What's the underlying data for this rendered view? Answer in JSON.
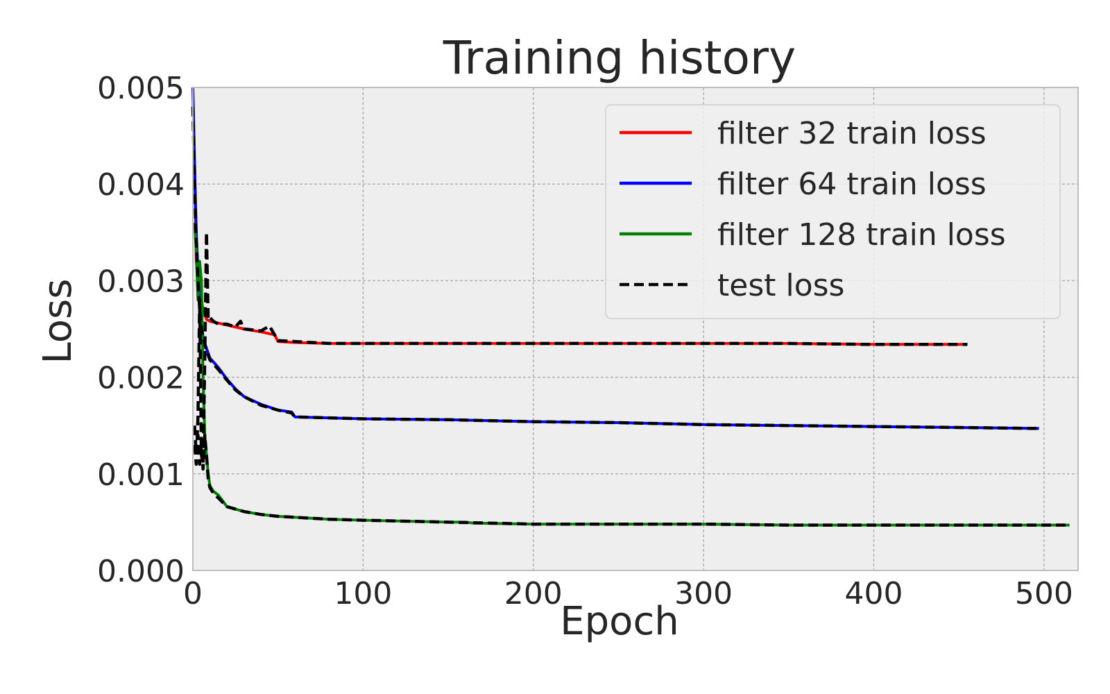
{
  "chart_data": {
    "type": "line",
    "title": "Training history",
    "xlabel": "Epoch",
    "ylabel": "Loss",
    "xlim": [
      0,
      520
    ],
    "ylim": [
      0,
      0.005
    ],
    "xticks": [
      0,
      100,
      200,
      300,
      400,
      500
    ],
    "yticks": [
      0.0,
      0.001,
      0.002,
      0.003,
      0.004,
      0.005
    ],
    "xtick_labels": [
      "0",
      "100",
      "200",
      "300",
      "400",
      "500"
    ],
    "ytick_labels": [
      "0.000",
      "0.001",
      "0.002",
      "0.003",
      "0.004",
      "0.005"
    ],
    "grid": true,
    "legend_position": "top-right",
    "series": [
      {
        "name": "filter 32 train loss",
        "color": "#ff0000",
        "style": "solid",
        "x": [
          1,
          2,
          3,
          4,
          5,
          6,
          7,
          8,
          10,
          15,
          20,
          30,
          40,
          48,
          50,
          60,
          80,
          100,
          150,
          200,
          250,
          300,
          350,
          400,
          455
        ],
        "y": [
          0.0042,
          0.0032,
          0.003,
          0.0029,
          0.0028,
          0.0027,
          0.00265,
          0.0026,
          0.00258,
          0.00256,
          0.00254,
          0.0025,
          0.00247,
          0.00244,
          0.00237,
          0.00236,
          0.00235,
          0.00235,
          0.00235,
          0.00235,
          0.00235,
          0.00235,
          0.00235,
          0.00234,
          0.00234
        ]
      },
      {
        "name": "filter 64 train loss",
        "color": "#0000ff",
        "style": "solid",
        "x": [
          0,
          1,
          2,
          3,
          4,
          5,
          6,
          8,
          10,
          15,
          20,
          25,
          30,
          40,
          50,
          58,
          60,
          80,
          100,
          150,
          200,
          250,
          300,
          350,
          400,
          450,
          497
        ],
        "y": [
          0.005,
          0.0042,
          0.0035,
          0.0031,
          0.0028,
          0.0026,
          0.0024,
          0.0023,
          0.0022,
          0.0021,
          0.00198,
          0.00188,
          0.0018,
          0.00172,
          0.00166,
          0.00164,
          0.00159,
          0.00158,
          0.00157,
          0.00156,
          0.00154,
          0.00153,
          0.00151,
          0.0015,
          0.00149,
          0.00148,
          0.00147
        ]
      },
      {
        "name": "filter 128 train loss",
        "color": "#008000",
        "style": "solid",
        "x": [
          1,
          2,
          3,
          4,
          5,
          6,
          7,
          8,
          9,
          10,
          12,
          15,
          20,
          30,
          40,
          50,
          60,
          80,
          100,
          150,
          160,
          165,
          200,
          250,
          300,
          350,
          400,
          450,
          515
        ],
        "y": [
          0.0036,
          0.0033,
          0.0028,
          0.0032,
          0.003,
          0.002,
          0.0014,
          0.0012,
          0.001,
          0.00088,
          0.00082,
          0.00078,
          0.00066,
          0.00061,
          0.00058,
          0.00056,
          0.00055,
          0.00053,
          0.00052,
          0.0005,
          0.0005,
          0.00049,
          0.00048,
          0.00048,
          0.00048,
          0.00047,
          0.00047,
          0.00047,
          0.00047
        ]
      },
      {
        "name": "test loss",
        "color": "#000000",
        "style": "dashed",
        "x": [
          1,
          2,
          3,
          4,
          5,
          6,
          7,
          8,
          9,
          10,
          12,
          15,
          20,
          25,
          28,
          30,
          35,
          40,
          45,
          50,
          60,
          70,
          80,
          100,
          150,
          200,
          250,
          300,
          350,
          400,
          455
        ],
        "y": [
          0.0013,
          0.0011,
          0.0016,
          0.0028,
          0.0012,
          0.0011,
          0.0022,
          0.0035,
          0.0026,
          0.00262,
          0.00258,
          0.00255,
          0.00255,
          0.00252,
          0.00258,
          0.0025,
          0.00249,
          0.00248,
          0.00253,
          0.00238,
          0.00237,
          0.00236,
          0.00235,
          0.00235,
          0.00235,
          0.00235,
          0.00235,
          0.00235,
          0.00235,
          0.00234,
          0.00234
        ]
      },
      {
        "name": "",
        "color": "#000000",
        "style": "dashed",
        "x": [
          0,
          1,
          2,
          3,
          4,
          5,
          6,
          8,
          10,
          15,
          20,
          25,
          30,
          40,
          50,
          58,
          60,
          80,
          100,
          150,
          200,
          250,
          300,
          350,
          400,
          450,
          497
        ],
        "y": [
          0.0048,
          0.004,
          0.0034,
          0.003,
          0.0027,
          0.0025,
          0.0024,
          0.00228,
          0.00218,
          0.00208,
          0.00197,
          0.00187,
          0.0018,
          0.00171,
          0.00166,
          0.00163,
          0.00159,
          0.00158,
          0.00157,
          0.00156,
          0.00154,
          0.00153,
          0.00151,
          0.0015,
          0.00149,
          0.00148,
          0.00147
        ]
      },
      {
        "name": "",
        "color": "#000000",
        "style": "dashed",
        "x": [
          1,
          2,
          3,
          4,
          5,
          6,
          7,
          8,
          9,
          10,
          12,
          15,
          20,
          30,
          40,
          50,
          60,
          80,
          100,
          150,
          200,
          250,
          300,
          350,
          400,
          450,
          515
        ],
        "y": [
          0.0015,
          0.0012,
          0.0014,
          0.0011,
          0.0013,
          0.00105,
          0.0014,
          0.0012,
          0.00095,
          0.00086,
          0.0008,
          0.00075,
          0.00066,
          0.00061,
          0.00058,
          0.00056,
          0.00055,
          0.00053,
          0.00052,
          0.0005,
          0.00048,
          0.00048,
          0.00048,
          0.00047,
          0.00047,
          0.00047,
          0.00047
        ]
      }
    ]
  }
}
